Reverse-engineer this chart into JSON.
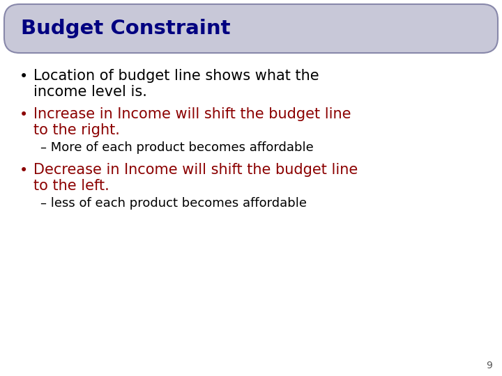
{
  "title": "Budget Constraint",
  "title_color": "#000080",
  "title_bg_color": "#c8c8d8",
  "title_border_color": "#8888aa",
  "bg_color": "#ffffff",
  "bullet1_text1": "Location of budget line shows what the",
  "bullet1_text2": "income level is.",
  "bullet1_color": "#000000",
  "bullet2_text1": "Increase in Income will shift the budget line",
  "bullet2_text2": "to the right.",
  "bullet2_color": "#8b0000",
  "sub1_text": "– More of each product becomes affordable",
  "sub1_color": "#000000",
  "bullet3_text1": "Decrease in Income will shift the budget line",
  "bullet3_text2": "to the left.",
  "bullet3_color": "#8b0000",
  "sub2_text": "– less of each product becomes affordable",
  "sub2_color": "#000000",
  "page_number": "9",
  "page_num_color": "#555555"
}
